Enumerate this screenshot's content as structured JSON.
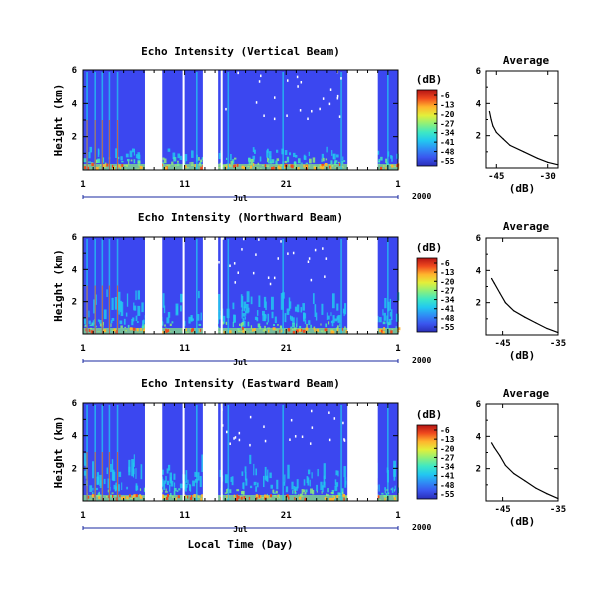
{
  "colors": {
    "background_fill": "#3b47f0",
    "gap_fill": "#ffffff",
    "colormap": [
      "#2a2eb8",
      "#3a55ee",
      "#2f8cf5",
      "#22c8f0",
      "#3ee8c4",
      "#8ef07a",
      "#e3ef3a",
      "#ffb52d",
      "#f04a1e",
      "#b51414"
    ]
  },
  "chart_data": [
    {
      "type": "heatmap",
      "title": "Echo Intensity (Vertical Beam)",
      "ylabel": "Height (km)",
      "y_ticks": [
        2,
        4,
        6
      ],
      "ylim": [
        0,
        6
      ],
      "x_ticks": [
        "1",
        "11",
        "21",
        "1"
      ],
      "x_month_label": "Jul",
      "x_year_label": "2000",
      "xlim": [
        1,
        32
      ],
      "data_gaps_day": [
        [
          7.1,
          8.8
        ],
        [
          10.8,
          11.0
        ],
        [
          12.8,
          14.3
        ],
        [
          14.55,
          14.75
        ],
        [
          27.0,
          30.0
        ]
      ],
      "colorbar": {
        "unit_label": "(dB)",
        "tick_labels": [
          "-6",
          "-13",
          "-20",
          "-27",
          "-34",
          "-41",
          "-48",
          "-55"
        ]
      }
    },
    {
      "type": "heatmap",
      "title": "Echo Intensity (Northward Beam)",
      "ylabel": "Height (km)",
      "y_ticks": [
        2,
        4,
        6
      ],
      "ylim": [
        0,
        6
      ],
      "x_ticks": [
        "1",
        "11",
        "21",
        "1"
      ],
      "x_month_label": "Jul",
      "x_year_label": "2000",
      "xlim": [
        1,
        32
      ],
      "data_gaps_day": [
        [
          7.1,
          8.8
        ],
        [
          10.8,
          11.0
        ],
        [
          12.8,
          14.3
        ],
        [
          14.55,
          14.75
        ],
        [
          27.0,
          30.0
        ]
      ],
      "colorbar": {
        "unit_label": "(dB)",
        "tick_labels": [
          "-6",
          "-13",
          "-20",
          "-27",
          "-34",
          "-41",
          "-48",
          "-55"
        ]
      }
    },
    {
      "type": "heatmap",
      "title": "Echo Intensity (Eastward Beam)",
      "ylabel": "Height (km)",
      "xlabel": "Local Time (Day)",
      "y_ticks": [
        2,
        4,
        6
      ],
      "ylim": [
        0,
        6
      ],
      "x_ticks": [
        "1",
        "11",
        "21",
        "1"
      ],
      "x_month_label": "Jul",
      "x_year_label": "2000",
      "xlim": [
        1,
        32
      ],
      "data_gaps_day": [
        [
          7.1,
          8.8
        ],
        [
          10.8,
          11.0
        ],
        [
          12.8,
          14.3
        ],
        [
          14.55,
          14.75
        ],
        [
          27.0,
          30.0
        ]
      ],
      "colorbar": {
        "unit_label": "(dB)",
        "tick_labels": [
          "-6",
          "-13",
          "-20",
          "-27",
          "-34",
          "-41",
          "-48",
          "-55"
        ]
      }
    },
    {
      "type": "line",
      "title": "Average",
      "xlabel": "(dB)",
      "x_ticks": [
        "-45",
        "-30"
      ],
      "xlim": [
        -48,
        -27
      ],
      "y_ticks": [
        2,
        4,
        6
      ],
      "ylim": [
        0,
        6
      ],
      "series": [
        {
          "values": [
            [
              -27,
              0.2
            ],
            [
              -30,
              0.35
            ],
            [
              -33,
              0.6
            ],
            [
              -37,
              1.0
            ],
            [
              -41,
              1.4
            ],
            [
              -43,
              1.8
            ],
            [
              -45,
              2.2
            ],
            [
              -46,
              2.6
            ],
            [
              -46.5,
              3.0
            ],
            [
              -47,
              3.5
            ]
          ]
        }
      ]
    },
    {
      "type": "line",
      "title": "Average",
      "xlabel": "(dB)",
      "x_ticks": [
        "-45",
        "-35"
      ],
      "xlim": [
        -48,
        -35
      ],
      "y_ticks": [
        2,
        4,
        6
      ],
      "ylim": [
        0,
        6
      ],
      "series": [
        {
          "values": [
            [
              -35,
              0.15
            ],
            [
              -37,
              0.4
            ],
            [
              -39,
              0.75
            ],
            [
              -41,
              1.1
            ],
            [
              -43,
              1.5
            ],
            [
              -44.5,
              2.0
            ],
            [
              -45.5,
              2.6
            ],
            [
              -46.5,
              3.2
            ],
            [
              -47,
              3.5
            ]
          ]
        }
      ]
    },
    {
      "type": "line",
      "title": "Average",
      "xlabel": "(dB)",
      "x_ticks": [
        "-45",
        "-35"
      ],
      "xlim": [
        -48,
        -35
      ],
      "y_ticks": [
        2,
        4,
        6
      ],
      "ylim": [
        0,
        6
      ],
      "series": [
        {
          "values": [
            [
              -35,
              0.15
            ],
            [
              -37,
              0.45
            ],
            [
              -39,
              0.8
            ],
            [
              -41,
              1.25
            ],
            [
              -43,
              1.7
            ],
            [
              -44.5,
              2.2
            ],
            [
              -45.5,
              2.8
            ],
            [
              -46.5,
              3.3
            ],
            [
              -47,
              3.6
            ]
          ]
        }
      ]
    }
  ]
}
